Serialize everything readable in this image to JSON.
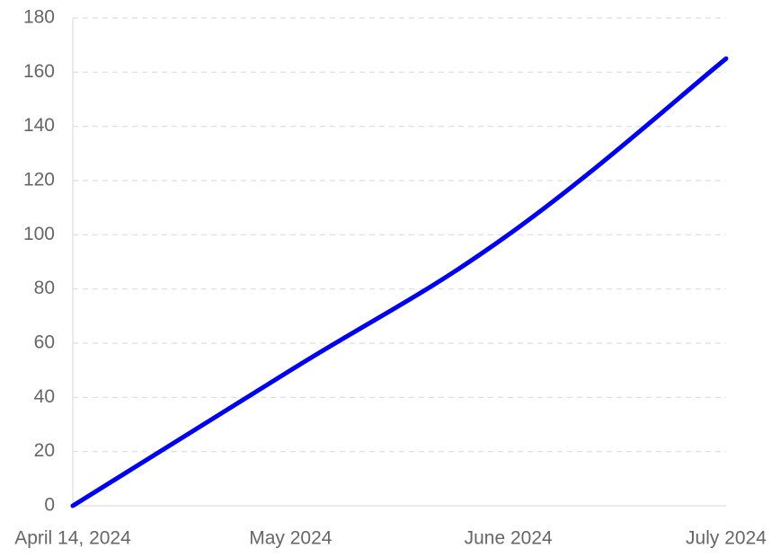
{
  "chart_data": {
    "type": "line",
    "categories": [
      "April 14, 2024",
      "May 2024",
      "June 2024",
      "July 2024"
    ],
    "values": [
      0,
      50,
      100,
      165
    ],
    "color": "#0000ee",
    "ylim": [
      0,
      180
    ],
    "yticks": [
      0,
      20,
      40,
      60,
      80,
      100,
      120,
      140,
      160,
      180
    ],
    "grid": true
  }
}
